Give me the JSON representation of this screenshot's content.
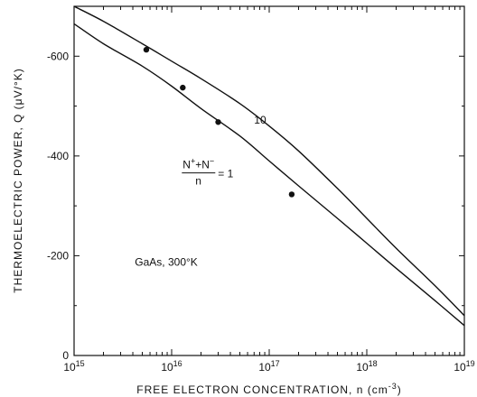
{
  "chart_data": {
    "type": "line",
    "title": "",
    "xlabel": "FREE ELECTRON CONCENTRATION, n (cm",
    "xlabel_sup": "-3",
    "xlabel_close": ")",
    "ylabel": "THERMOELECTRIC POWER, Q (μV/°K)",
    "x_scale": "log",
    "xlim": [
      1000000000000000.0,
      1e+19
    ],
    "ylim": [
      0,
      700
    ],
    "grid": false,
    "x_ticks": [
      {
        "value": 1000000000000000.0,
        "base": "10",
        "exp": "15"
      },
      {
        "value": 1e+16,
        "base": "10",
        "exp": "16"
      },
      {
        "value": 1e+17,
        "base": "10",
        "exp": "17"
      },
      {
        "value": 1e+18,
        "base": "10",
        "exp": "18"
      },
      {
        "value": 1e+19,
        "base": "10",
        "exp": "19"
      }
    ],
    "y_ticks": [
      {
        "value": 0,
        "label": "0"
      },
      {
        "value": 200,
        "label": "-200"
      },
      {
        "value": 400,
        "label": "-400"
      },
      {
        "value": 600,
        "label": "-600"
      }
    ],
    "series": [
      {
        "name": "10",
        "x": [
          1000000000000000.0,
          2000000000000000.0,
          5000000000000000.0,
          1e+16,
          2e+16,
          5e+16,
          1e+17,
          2e+17,
          5e+17,
          1e+18,
          2e+18,
          5e+18,
          1e+19
        ],
        "y": [
          700,
          670,
          625,
          590,
          555,
          505,
          460,
          410,
          335,
          275,
          215,
          140,
          80
        ]
      },
      {
        "name": "1",
        "x": [
          1000000000000000.0,
          2000000000000000.0,
          5000000000000000.0,
          1e+16,
          2e+16,
          5e+16,
          1e+17,
          2e+17,
          5e+17,
          1e+18,
          2e+18,
          5e+18,
          1e+19
        ],
        "y": [
          665,
          625,
          580,
          540,
          495,
          440,
          390,
          340,
          275,
          225,
          175,
          110,
          60
        ]
      }
    ],
    "points": [
      {
        "x": 5500000000000000.0,
        "y": 613
      },
      {
        "x": 1.3e+16,
        "y": 537
      },
      {
        "x": 3e+16,
        "y": 468
      },
      {
        "x": 1.7e+17,
        "y": 323
      }
    ],
    "annotations": {
      "curve_label_10": {
        "text": "10",
        "x": 7e+16,
        "y": 465
      },
      "fraction_numerator": "N",
      "fraction_num_sup1": "+",
      "fraction_plus": "+N",
      "fraction_num_sup2": "−",
      "fraction_denominator": "n",
      "fraction_equals": "= 1",
      "fraction_pos": {
        "x": 1.3e+16,
        "y": 375
      },
      "sample_label": {
        "text": "GaAs, 300°K",
        "x": 4200000000000000.0,
        "y": 180
      }
    }
  }
}
